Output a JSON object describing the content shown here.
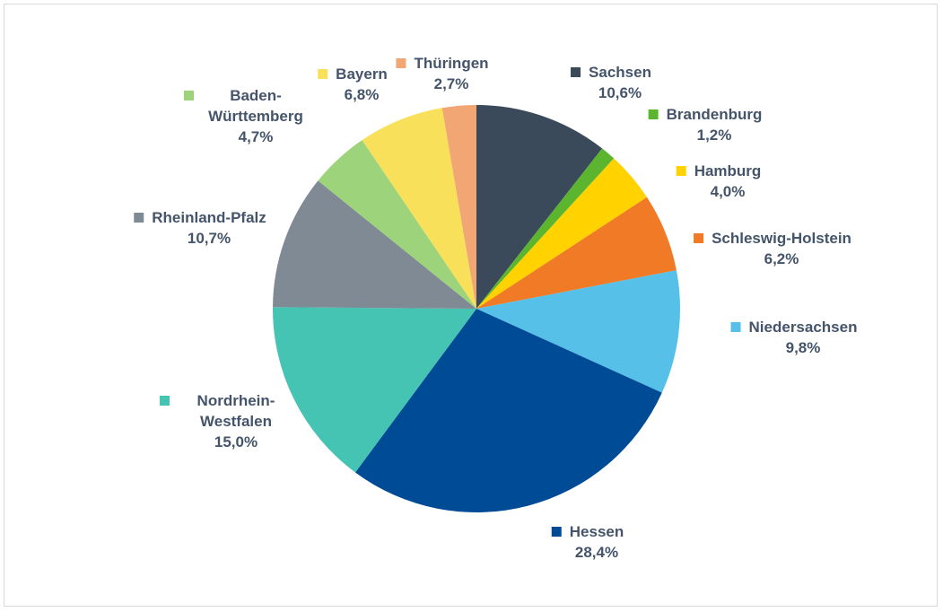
{
  "chart_data": {
    "type": "pie",
    "categories": [
      "Sachsen",
      "Brandenburg",
      "Hamburg",
      "Schleswig-Holstein",
      "Niedersachsen",
      "Hessen",
      "Nordrhein-Westfalen",
      "Rheinland-Pfalz",
      "Baden-Württemberg",
      "Bayern",
      "Thüringen"
    ],
    "values": [
      10.6,
      1.2,
      4.0,
      6.2,
      9.8,
      28.4,
      15.0,
      10.7,
      4.7,
      6.8,
      2.7
    ],
    "value_labels": [
      "10,6%",
      "1,2%",
      "4,0%",
      "6,2%",
      "9,8%",
      "28,4%",
      "15,0%",
      "10,7%",
      "4,7%",
      "6,8%",
      "2,7%"
    ],
    "colors": [
      "#3b4a5a",
      "#5bb52f",
      "#ffd200",
      "#f07a25",
      "#56c0e8",
      "#004b96",
      "#45c4b4",
      "#7f8a94",
      "#9dd37a",
      "#f9e05a",
      "#f2a673"
    ]
  }
}
